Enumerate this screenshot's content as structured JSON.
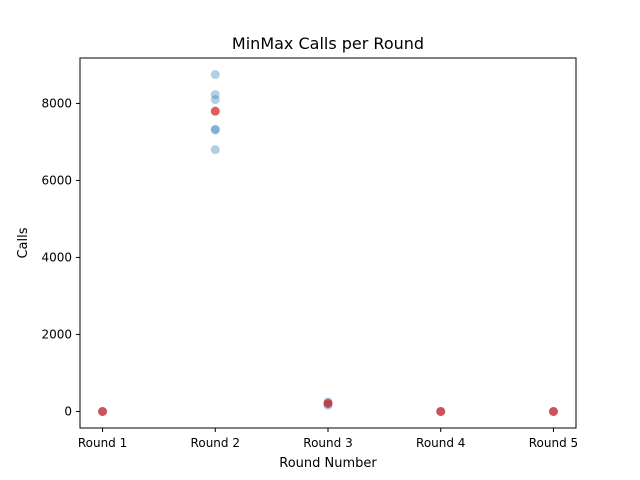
{
  "chart_data": {
    "type": "scatter",
    "title": "MinMax Calls per Round",
    "xlabel": "Round Number",
    "ylabel": "Calls",
    "categories": [
      "Round 1",
      "Round 2",
      "Round 3",
      "Round 4",
      "Round 5"
    ],
    "ylim": [
      -430,
      9180
    ],
    "yticks": [
      0,
      2000,
      4000,
      6000,
      8000
    ],
    "grid": false,
    "legend": "none",
    "series": [
      {
        "color": "#1f77b4",
        "points": [
          {
            "x": "Round 1",
            "y": 0
          },
          {
            "x": "Round 2",
            "y": 8750
          },
          {
            "x": "Round 2",
            "y": 8230
          },
          {
            "x": "Round 2",
            "y": 8100
          },
          {
            "x": "Round 2",
            "y": 7330
          },
          {
            "x": "Round 2",
            "y": 7310
          },
          {
            "x": "Round 2",
            "y": 6800
          },
          {
            "x": "Round 3",
            "y": 250
          },
          {
            "x": "Round 3",
            "y": 200
          },
          {
            "x": "Round 3",
            "y": 160
          },
          {
            "x": "Round 4",
            "y": 0
          },
          {
            "x": "Round 5",
            "y": 0
          }
        ]
      },
      {
        "color": "#d62728",
        "points": [
          {
            "x": "Round 1",
            "y": 0
          },
          {
            "x": "Round 2",
            "y": 7800
          },
          {
            "x": "Round 3",
            "y": 210
          },
          {
            "x": "Round 4",
            "y": 0
          },
          {
            "x": "Round 5",
            "y": 0
          }
        ]
      }
    ]
  }
}
